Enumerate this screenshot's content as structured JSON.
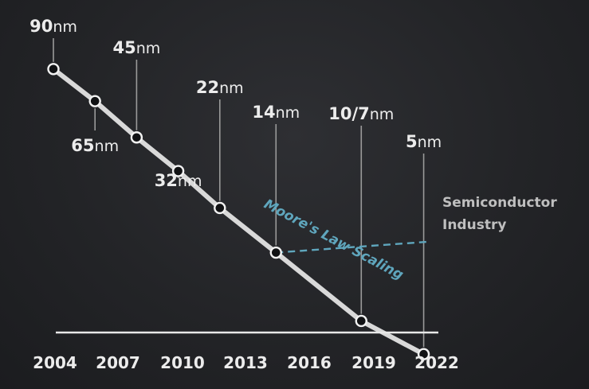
{
  "chart_data": {
    "type": "line",
    "x_axis": {
      "tick_labels": [
        "2004",
        "2007",
        "2010",
        "2013",
        "2016",
        "2019",
        "2022"
      ]
    },
    "series": [
      {
        "name": "Semiconductor Industry",
        "color": "#d9d9d9",
        "points": [
          {
            "x": 2004.0,
            "y": 90,
            "label_num": "90",
            "label_unit": "nm"
          },
          {
            "x": 2006.0,
            "y": 65,
            "label_num": "65",
            "label_unit": "nm"
          },
          {
            "x": 2008.0,
            "y": 45,
            "label_num": "45",
            "label_unit": "nm"
          },
          {
            "x": 2010.0,
            "y": 32,
            "label_num": "32",
            "label_unit": "nm"
          },
          {
            "x": 2012.0,
            "y": 22,
            "label_num": "22",
            "label_unit": "nm"
          },
          {
            "x": 2014.7,
            "y": 14,
            "label_num": "14",
            "label_unit": "nm"
          },
          {
            "x": 2018.8,
            "y": 7,
            "label_num": "10/7",
            "label_unit": "nm"
          },
          {
            "x": 2021.8,
            "y": 5,
            "label_num": "5",
            "label_unit": "nm"
          }
        ]
      },
      {
        "name": "Moore's Law Scaling",
        "color": "#5fa6bd",
        "style": "dashed",
        "trend": "continues downward from 14nm at the same rate as before"
      }
    ],
    "legend_labels": {
      "industry_line1": "Semiconductor",
      "industry_line2": "Industry",
      "moore": "Moore's Law Scaling"
    },
    "colors": {
      "background": "#232427",
      "industry_line": "#d9d9d9",
      "moore_line": "#5fa6bd",
      "text": "#ececec",
      "legend_text": "#bfbfbf"
    }
  }
}
